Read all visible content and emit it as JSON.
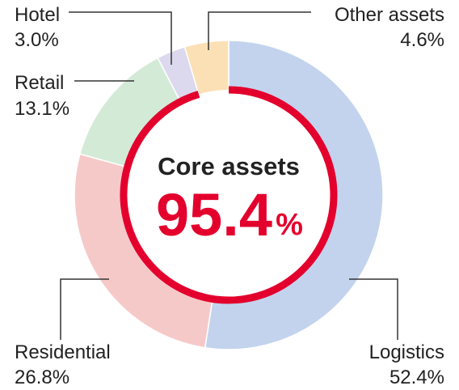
{
  "chart_data": {
    "type": "donut",
    "categories": [
      "Logistics",
      "Residential",
      "Retail",
      "Hotel",
      "Other assets"
    ],
    "values": [
      52.4,
      26.8,
      13.1,
      3.0,
      4.6
    ],
    "value_labels": [
      "52.4%",
      "26.8%",
      "13.1%",
      "3.0%",
      "4.6%"
    ],
    "colors": [
      "#c3d3ee",
      "#f6c9c9",
      "#d3ebd6",
      "#dcd9ee",
      "#fbe0b5"
    ],
    "center_title": "Core assets",
    "center_value": 95.4,
    "center_value_label": "95.4",
    "center_unit": "%",
    "center_color": "#e3002d"
  }
}
